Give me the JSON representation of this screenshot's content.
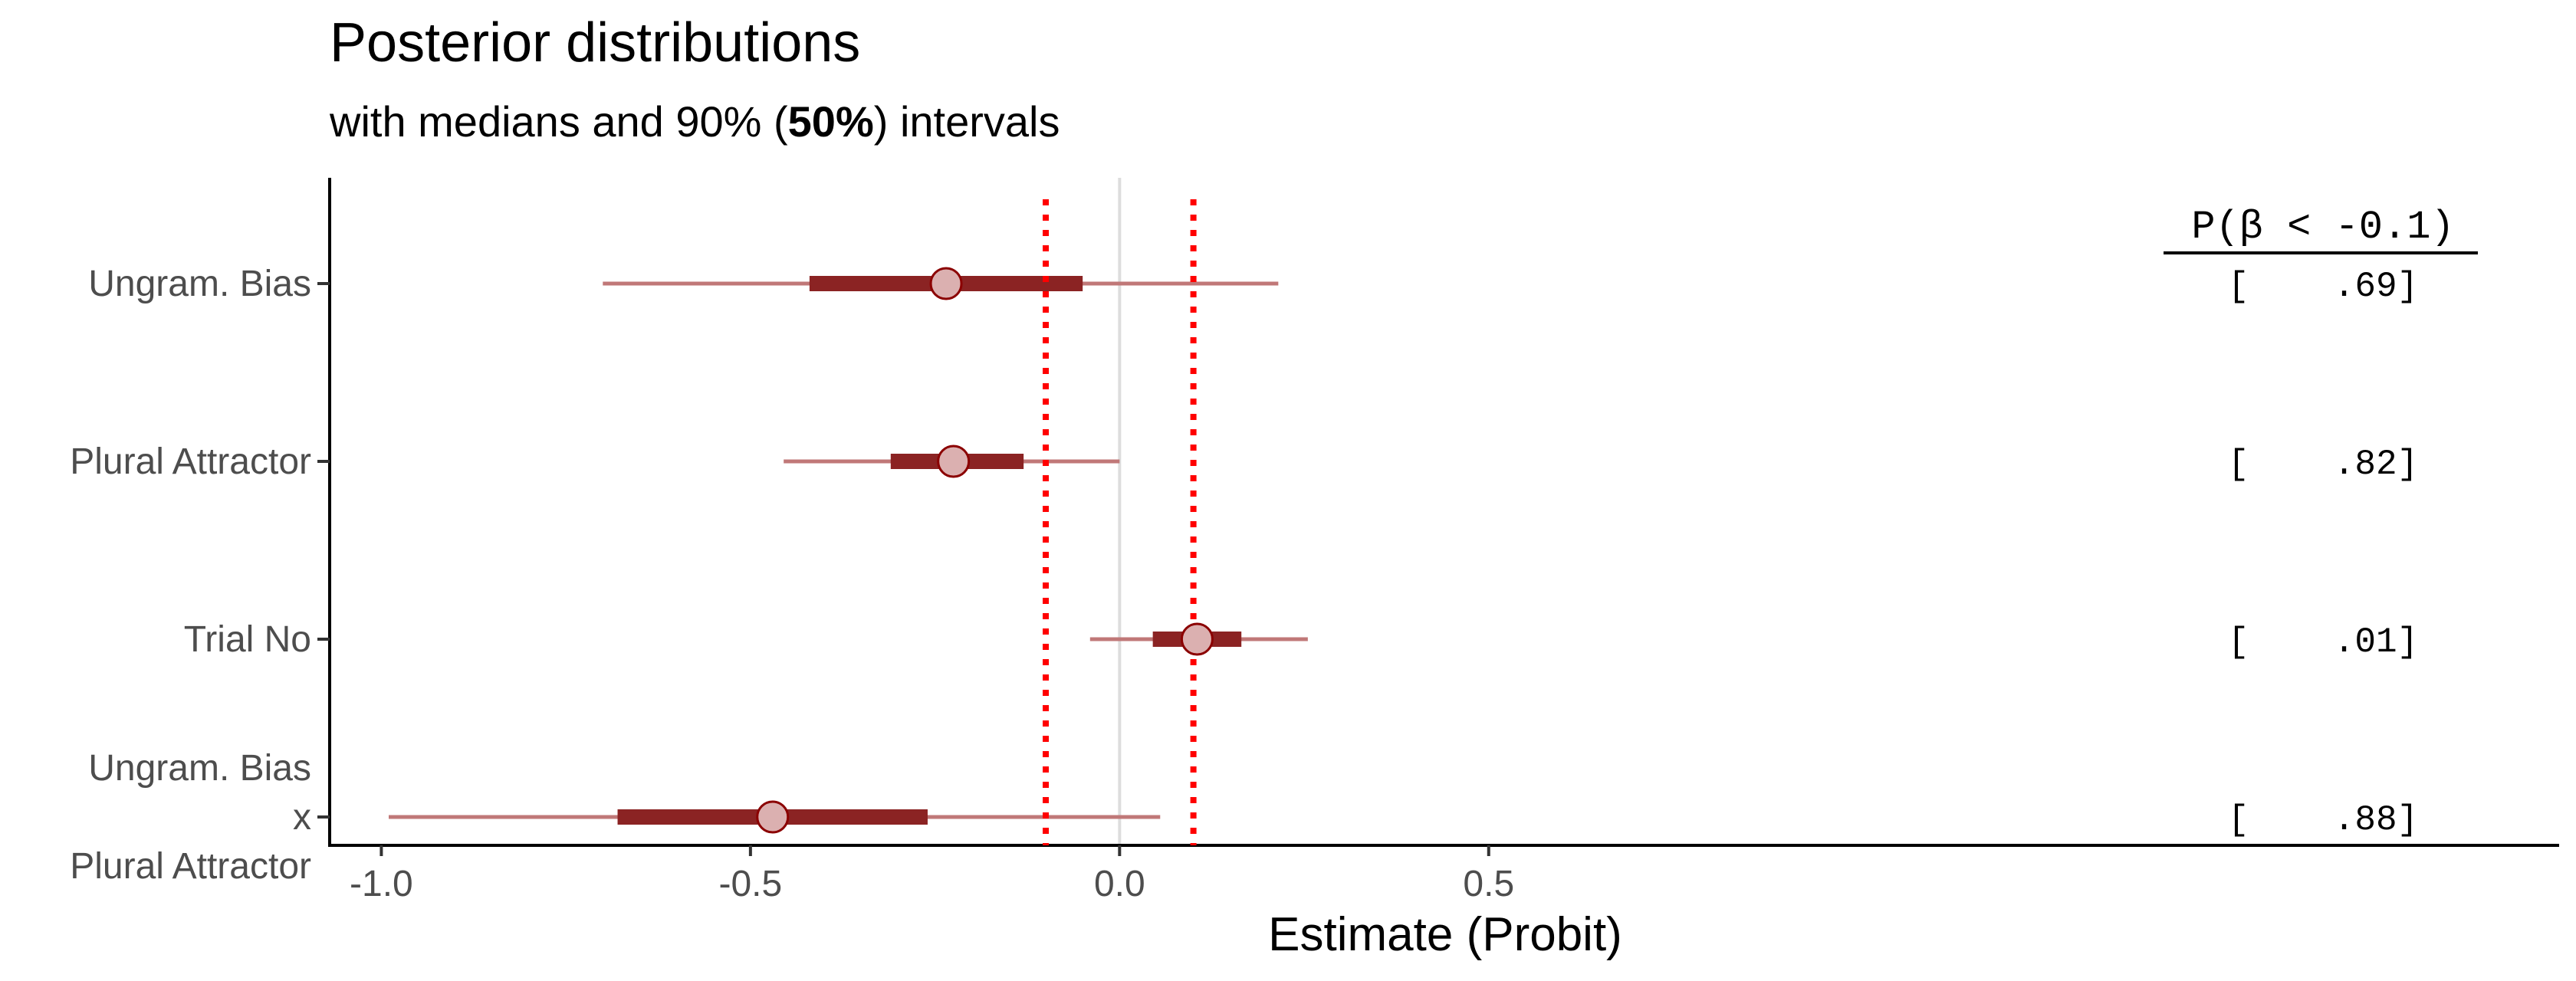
{
  "chart_data": {
    "type": "interval",
    "title": "Posterior distributions",
    "subtitle": {
      "prefix": "with medians and 90% (",
      "bold": "50%",
      "suffix": ") intervals"
    },
    "xlabel": "Estimate (Probit)",
    "xlim": [
      -1.07,
      1.95
    ],
    "xticks": [
      {
        "value": -1.0,
        "label": "-1.0"
      },
      {
        "value": -0.5,
        "label": "-0.5"
      },
      {
        "value": 0.0,
        "label": "0.0"
      },
      {
        "value": 0.5,
        "label": "0.5"
      }
    ],
    "reference_lines": [
      -0.1,
      0.1
    ],
    "zero_line": 0,
    "annotation_header": "P(β < -0.1)",
    "colors": {
      "outer": "#c07878",
      "inner": "#8b2323",
      "point_fill": "#dbb0b0",
      "point_stroke": "#8b0000",
      "reference": "#ff0000",
      "zero": "#dddddd"
    },
    "rows": [
      {
        "label_lines": [
          "Ungram. Bias"
        ],
        "median": -0.235,
        "inner": [
          -0.42,
          -0.05
        ],
        "outer": [
          -0.7,
          0.215
        ],
        "prob": "[    .69]"
      },
      {
        "label_lines": [
          "Plural Attractor"
        ],
        "median": -0.225,
        "inner": [
          -0.31,
          -0.13
        ],
        "outer": [
          -0.455,
          0.0
        ],
        "prob": "[    .82]"
      },
      {
        "label_lines": [
          "Trial No"
        ],
        "median": 0.105,
        "inner": [
          0.045,
          0.165
        ],
        "outer": [
          -0.04,
          0.255
        ],
        "prob": "[    .01]"
      },
      {
        "label_lines": [
          "Ungram. Bias",
          "x",
          "Plural Attractor"
        ],
        "median": -0.47,
        "inner": [
          -0.68,
          -0.26
        ],
        "outer": [
          -0.99,
          0.055
        ],
        "prob": "[    .88]"
      }
    ]
  }
}
